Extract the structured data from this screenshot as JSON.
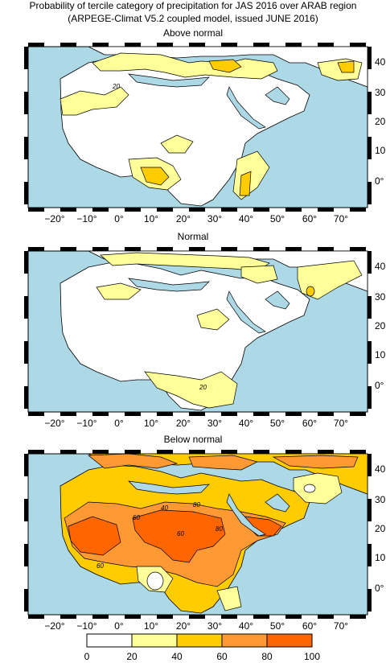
{
  "title_line1": "Probability of tercile category of precipitation for JAS 2016 over ARAB region",
  "title_line2": "(ARPEGE-Climat V5.2 coupled model, issued JUNE 2016)",
  "panels": [
    {
      "title": "Above normal",
      "contour_labels": [
        "20"
      ]
    },
    {
      "title": "Normal",
      "contour_labels": [
        "20"
      ]
    },
    {
      "title": "Below normal",
      "contour_labels": [
        "60",
        "40",
        "80",
        "60",
        "80",
        "60"
      ]
    }
  ],
  "lon_labels": [
    "−20°",
    "−10°",
    "0°",
    "10°",
    "20°",
    "30°",
    "40°",
    "50°",
    "60°",
    "70°"
  ],
  "lat_labels": [
    "40°",
    "30°",
    "20°",
    "10°",
    "0°"
  ],
  "colorbar": {
    "labels": [
      "0",
      "20",
      "40",
      "60",
      "80",
      "100"
    ],
    "colors": [
      "#ffffff",
      "#ffff99",
      "#ffcc00",
      "#ff9933",
      "#ff6600"
    ]
  },
  "colors": {
    "sea": "#add8e6",
    "land": "#ffffff",
    "prob_20_40": "#ffff99",
    "prob_40_60": "#ffcc00",
    "prob_60_80": "#ff9933",
    "prob_80_100": "#ff6600"
  }
}
